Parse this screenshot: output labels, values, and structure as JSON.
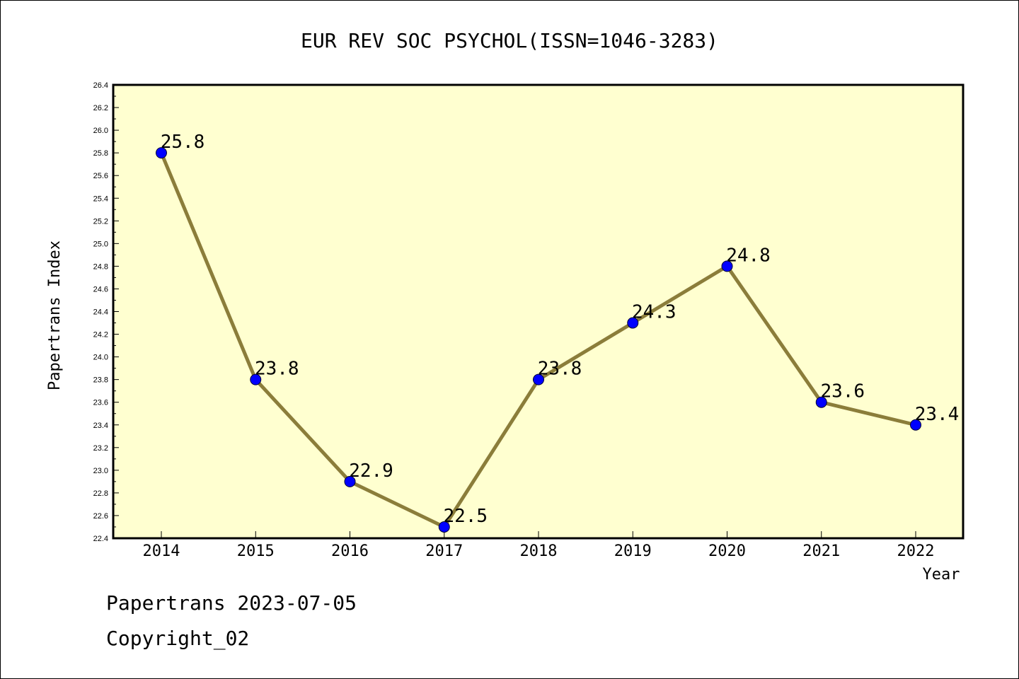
{
  "footer": {
    "line1": "Papertrans 2023-07-05",
    "line2": "Copyright_02"
  },
  "chart_data": {
    "type": "line",
    "title": "EUR REV SOC PSYCHOL(ISSN=1046-3283)",
    "xlabel": "Year",
    "ylabel": "Papertrans Index",
    "categories": [
      "2014",
      "2015",
      "2016",
      "2017",
      "2018",
      "2019",
      "2020",
      "2021",
      "2022"
    ],
    "series": [
      {
        "values": [
          25.8,
          23.8,
          22.9,
          22.5,
          23.8,
          24.3,
          24.8,
          23.6,
          23.4
        ]
      }
    ],
    "data_labels": [
      "25.8",
      "23.8",
      "22.9",
      "22.5",
      "23.8",
      "24.3",
      "24.8",
      "23.6",
      "23.4"
    ],
    "ylim": [
      22.4,
      26.4
    ],
    "yticks": [
      "22.4",
      "22.6",
      "22.8",
      "23.0",
      "23.2",
      "23.4",
      "23.6",
      "23.8",
      "24.0",
      "24.2",
      "24.4",
      "24.6",
      "24.8",
      "25.0",
      "25.2",
      "25.4",
      "25.6",
      "25.8",
      "26.0",
      "26.2",
      "26.4"
    ],
    "grid": false,
    "colors": {
      "plot_background": "#ffffd0",
      "line": "#8b7d3a",
      "marker": "#0000ff"
    }
  }
}
